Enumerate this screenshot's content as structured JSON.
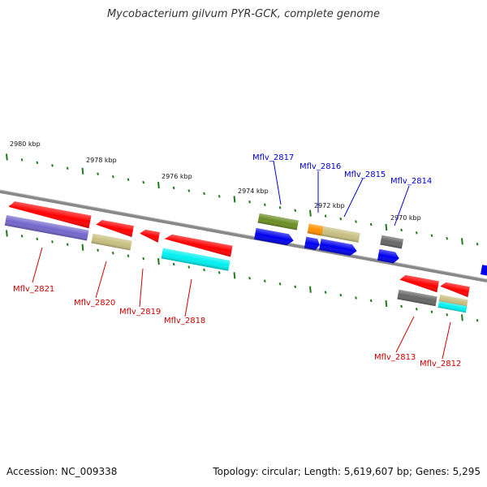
{
  "title": "Mycobacterium gilvum PYR-GCK, complete genome",
  "footer": {
    "accession": "Accession: NC_009338",
    "topology": "Topology: circular; Length: 5,619,607 bp; Genes: 5,295"
  },
  "colors": {
    "backbone": "#777777",
    "tick": "#1e7a1e",
    "tick_label": "#111111",
    "label_top": "#0000cc",
    "label_bottom": "#cc0000",
    "red": "#ff0000",
    "blue": "#0000ee",
    "purple": "#7466cc",
    "khaki": "#c8c080",
    "cyan": "#00f0f0",
    "olive": "#6b8e23",
    "orange": "#ff9000",
    "gray": "#666666"
  },
  "scale": {
    "labels": [
      "2980 kbp",
      "2978 kbp",
      "2976 kbp",
      "2974 kbp",
      "2972 kbp",
      "2970 kbp"
    ]
  },
  "genes_top": [
    {
      "label": "Mflv_2817"
    },
    {
      "label": "Mflv_2816"
    },
    {
      "label": "Mflv_2815"
    },
    {
      "label": "Mflv_2814"
    }
  ],
  "genes_bottom": [
    {
      "label": "Mflv_2821"
    },
    {
      "label": "Mflv_2820"
    },
    {
      "label": "Mflv_2819"
    },
    {
      "label": "Mflv_2818"
    },
    {
      "label": "Mflv_2813"
    },
    {
      "label": "Mflv_2812"
    }
  ]
}
